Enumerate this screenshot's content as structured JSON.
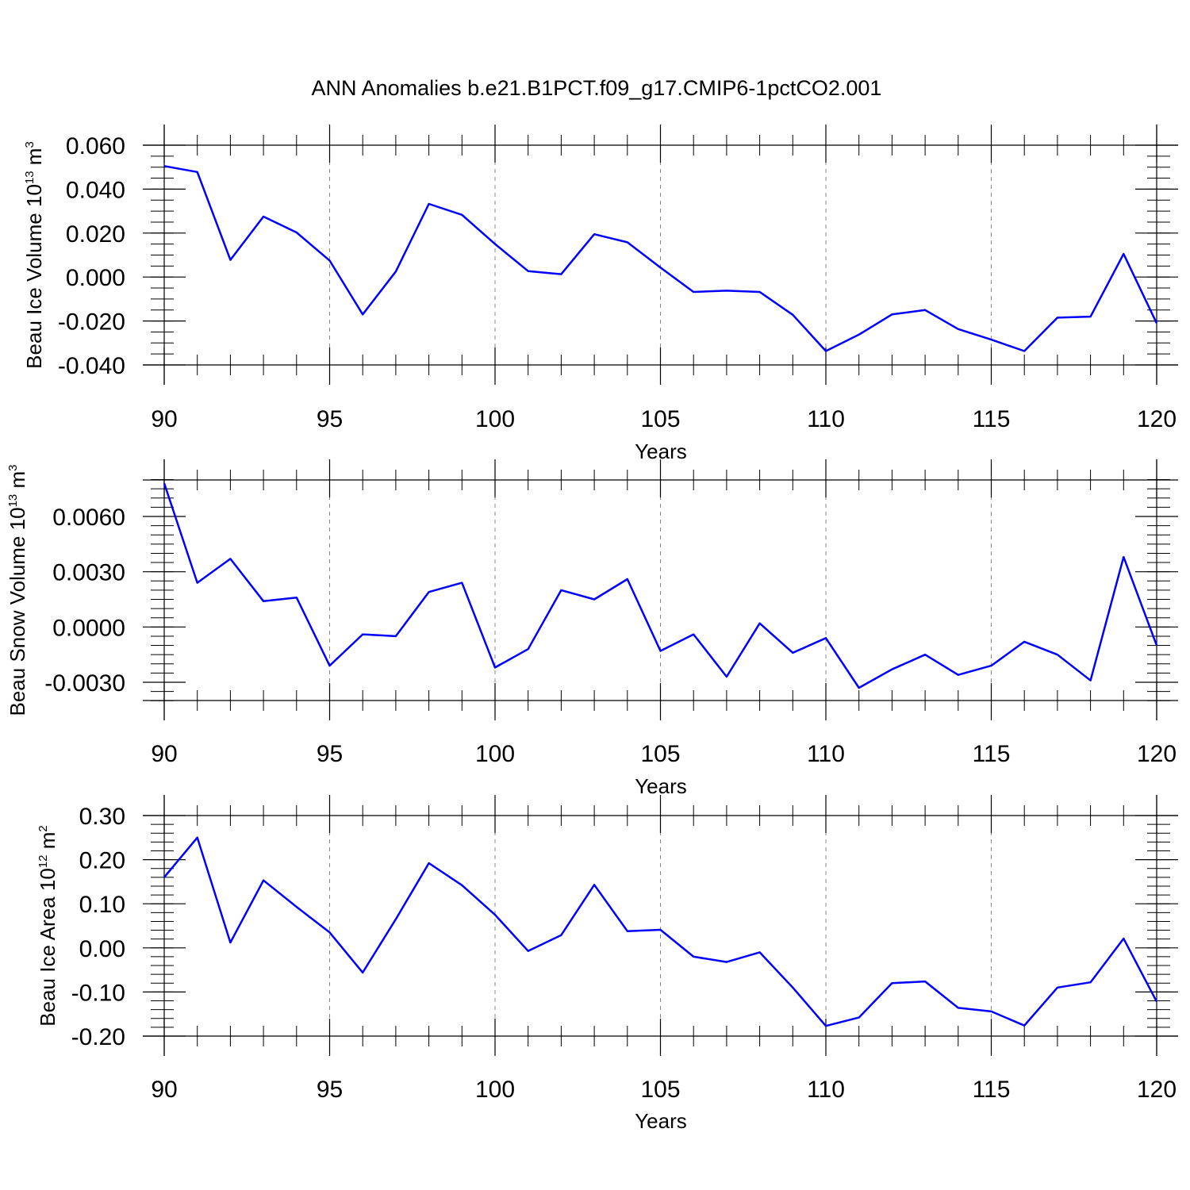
{
  "title": "ANN Anomalies b.e21.B1PCT.f09_g17.CMIP6-1pctCO2.001",
  "colors": {
    "line": "#0000ff",
    "axis": "#000000",
    "grid": "#888888"
  },
  "chart_data": [
    {
      "type": "line",
      "ylabel_base": "Beau Ice Volume 10",
      "ylabel_exp": "13",
      "ylabel_unit": " m",
      "ylabel_unit_exp": "3",
      "xlabel": "Years",
      "xlim": [
        90,
        120
      ],
      "ylim": [
        -0.04,
        0.065
      ],
      "x_ticks": [
        "90",
        "95",
        "100",
        "105",
        "110",
        "115",
        "120"
      ],
      "y_ticks": [
        {
          "v": 0.06,
          "label": "0.060"
        },
        {
          "v": 0.04,
          "label": "0.040"
        },
        {
          "v": 0.02,
          "label": "0.020"
        },
        {
          "v": 0.0,
          "label": "0.000"
        },
        {
          "v": -0.02,
          "label": "-0.020"
        },
        {
          "v": -0.04,
          "label": "-0.040"
        }
      ],
      "y_minor_step": 0.005,
      "grid": true,
      "x": [
        90,
        91,
        92,
        93,
        94,
        95,
        96,
        97,
        98,
        99,
        100,
        101,
        102,
        103,
        104,
        105,
        106,
        107,
        108,
        109,
        110,
        111,
        112,
        113,
        114,
        115,
        116,
        117,
        118,
        119,
        120
      ],
      "series": [
        {
          "values": [
            0.0505,
            0.0478,
            0.0078,
            0.0275,
            0.0203,
            0.0075,
            -0.017,
            0.0025,
            0.0333,
            0.0283,
            0.015,
            0.0027,
            0.0013,
            0.0195,
            0.0158,
            0.0043,
            -0.0068,
            -0.0062,
            -0.0068,
            -0.0172,
            -0.0337,
            -0.0262,
            -0.017,
            -0.015,
            -0.0237,
            -0.0285,
            -0.0337,
            -0.0185,
            -0.018,
            0.0105,
            -0.021
          ]
        }
      ]
    },
    {
      "type": "line",
      "ylabel_base": "Beau Snow Volume 10",
      "ylabel_exp": "13",
      "ylabel_unit": " m",
      "ylabel_unit_exp": "3",
      "xlabel": "Years",
      "xlim": [
        90,
        120
      ],
      "ylim": [
        -0.004,
        0.008
      ],
      "x_ticks": [
        "90",
        "95",
        "100",
        "105",
        "110",
        "115",
        "120"
      ],
      "y_ticks": [
        {
          "v": 0.006,
          "label": "0.0060"
        },
        {
          "v": 0.003,
          "label": "0.0030"
        },
        {
          "v": 0.0,
          "label": "0.0000"
        },
        {
          "v": -0.003,
          "label": "-0.0030"
        }
      ],
      "y_minor_step": 0.0005,
      "grid": true,
      "x": [
        90,
        91,
        92,
        93,
        94,
        95,
        96,
        97,
        98,
        99,
        100,
        101,
        102,
        103,
        104,
        105,
        106,
        107,
        108,
        109,
        110,
        111,
        112,
        113,
        114,
        115,
        116,
        117,
        118,
        119,
        120
      ],
      "series": [
        {
          "values": [
            0.0078,
            0.0024,
            0.0037,
            0.0014,
            0.0016,
            -0.0021,
            -0.0004,
            -0.0005,
            0.0019,
            0.0024,
            -0.0022,
            -0.0012,
            0.002,
            0.0015,
            0.0026,
            -0.0013,
            -0.0004,
            -0.0027,
            0.0002,
            -0.0014,
            -0.0006,
            -0.0033,
            -0.0023,
            -0.0015,
            -0.0026,
            -0.0021,
            -0.0008,
            -0.0015,
            -0.0029,
            0.0038,
            -0.001
          ]
        }
      ]
    },
    {
      "type": "line",
      "ylabel_base": "Beau Ice Area 10",
      "ylabel_exp": "12",
      "ylabel_unit": " m",
      "ylabel_unit_exp": "2",
      "xlabel": "Years",
      "xlim": [
        90,
        120
      ],
      "ylim": [
        -0.2,
        0.3
      ],
      "x_ticks": [
        "90",
        "95",
        "100",
        "105",
        "110",
        "115",
        "120"
      ],
      "y_ticks": [
        {
          "v": 0.3,
          "label": "0.30"
        },
        {
          "v": 0.2,
          "label": "0.20"
        },
        {
          "v": 0.1,
          "label": "0.10"
        },
        {
          "v": 0.0,
          "label": "0.00"
        },
        {
          "v": -0.1,
          "label": "-0.10"
        },
        {
          "v": -0.2,
          "label": "-0.20"
        }
      ],
      "y_minor_step": 0.02,
      "grid": true,
      "x": [
        90,
        91,
        92,
        93,
        94,
        95,
        96,
        97,
        98,
        99,
        100,
        101,
        102,
        103,
        104,
        105,
        106,
        107,
        108,
        109,
        110,
        111,
        112,
        113,
        114,
        115,
        116,
        117,
        118,
        119,
        120
      ],
      "series": [
        {
          "values": [
            0.16,
            0.25,
            0.012,
            0.153,
            0.093,
            0.035,
            -0.056,
            0.065,
            0.192,
            0.142,
            0.075,
            -0.007,
            0.029,
            0.143,
            0.038,
            0.041,
            -0.02,
            -0.032,
            -0.01,
            -0.09,
            -0.177,
            -0.158,
            -0.08,
            -0.076,
            -0.136,
            -0.144,
            -0.176,
            -0.09,
            -0.078,
            0.021,
            -0.122
          ]
        }
      ]
    }
  ]
}
